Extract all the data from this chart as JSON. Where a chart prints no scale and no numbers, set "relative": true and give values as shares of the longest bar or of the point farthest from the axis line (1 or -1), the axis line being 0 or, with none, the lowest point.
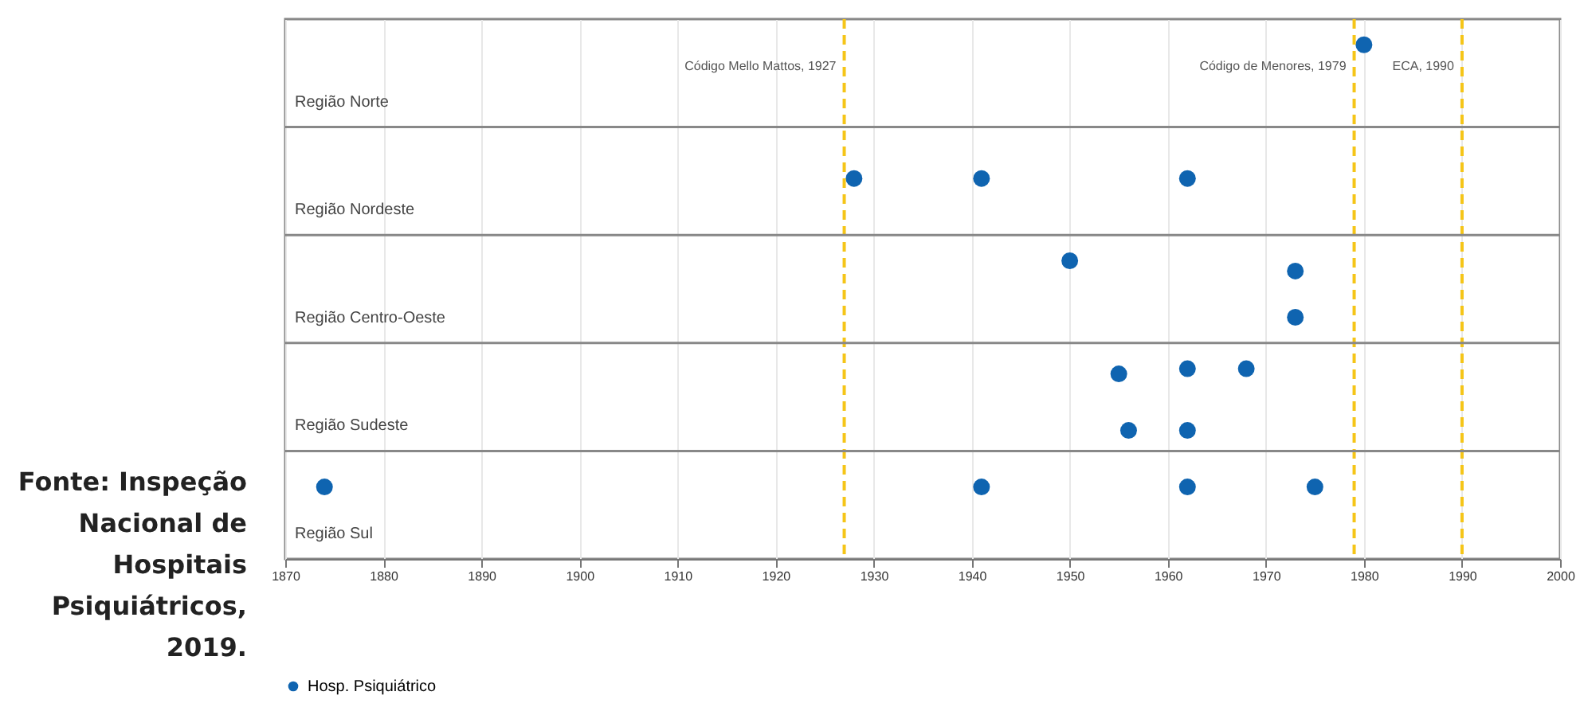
{
  "chart_data": {
    "type": "scatter",
    "relative": true,
    "series": [
      {
        "name": "Hosp. Psiquiátrico",
        "color": "#0f64b0",
        "x": [
          1980,
          1928,
          1941,
          1962,
          1950,
          1973,
          1973,
          1955,
          1962,
          1968,
          1956,
          1962,
          1874,
          1941,
          1962,
          1975
        ],
        "values": [
          1,
          0.74,
          0.74,
          0.74,
          0.58,
          0.56,
          0.47,
          0.36,
          0.37,
          0.37,
          0.25,
          0.25,
          0.14,
          0.14,
          0.14,
          0.14
        ]
      }
    ],
    "xlim": [
      1870,
      2000
    ],
    "xticks": [
      1870,
      1880,
      1890,
      1900,
      1910,
      1920,
      1930,
      1940,
      1950,
      1960,
      1970,
      1980,
      1990,
      2000
    ],
    "ref_lines": [
      {
        "axis": "x",
        "value": 1927,
        "label": "Código Mello Mattos, 1927",
        "color": "#f5c518",
        "line_style": "dashed"
      },
      {
        "axis": "x",
        "value": 1979,
        "label": "Código de Menores, 1979",
        "color": "#f5c518",
        "line_style": "dashed"
      },
      {
        "axis": "x",
        "value": 1990,
        "label": "ECA, 1990",
        "color": "#f5c518",
        "line_style": "dashed"
      },
      {
        "axis": "y",
        "value": 0.21,
        "color": "#888888",
        "line_style": "solid"
      },
      {
        "axis": "y",
        "value": 0.42,
        "color": "#888888",
        "line_style": "solid"
      },
      {
        "axis": "y",
        "value": 0.63,
        "color": "#888888",
        "line_style": "solid"
      },
      {
        "axis": "y",
        "value": 0.84,
        "color": "#888888",
        "line_style": "solid"
      }
    ],
    "annotations": [
      "Região Norte",
      "Região Nordeste",
      "Região Centro-Oeste",
      "Região Sudeste",
      "Região Sul",
      "Fonte: Inspeção Nacional de Hospitais Psiquiátricos, 2019."
    ],
    "grid": "x",
    "legend": "bottom",
    "marker": "circle"
  }
}
